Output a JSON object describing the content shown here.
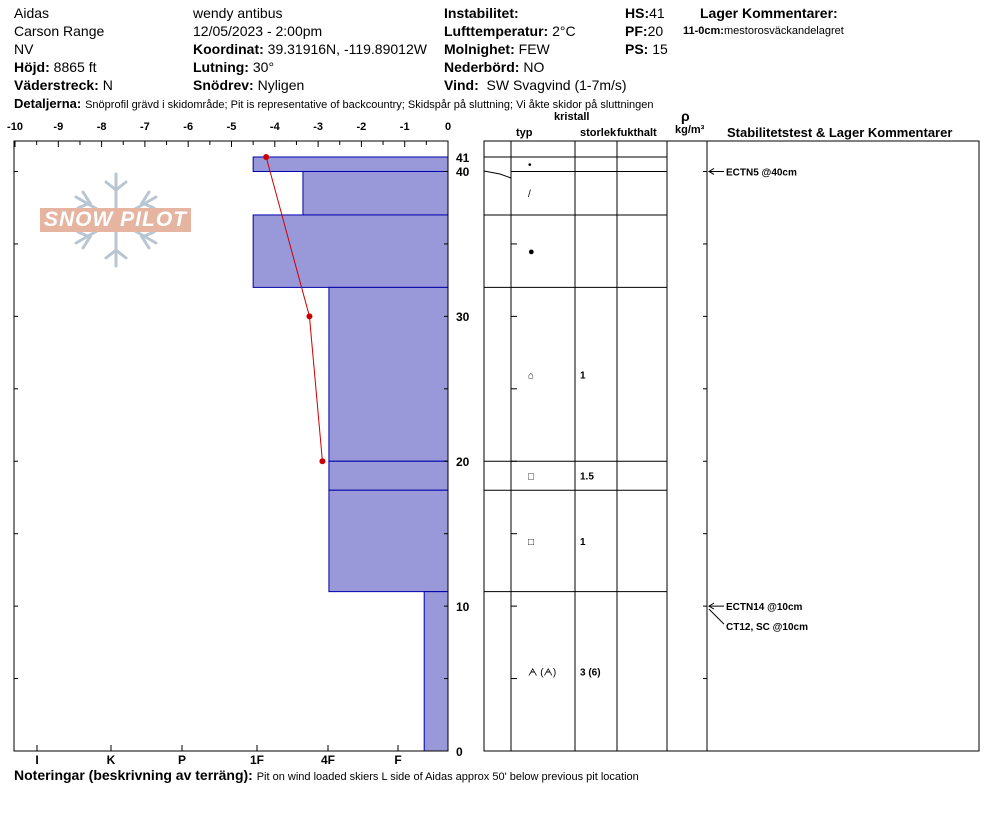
{
  "header": {
    "col1": [
      "Aidas",
      "Carson Range",
      "NV"
    ],
    "elevation_label": "Höjd:",
    "elevation_value": "8865 ft",
    "aspect_label": "Väderstreck:",
    "aspect_value": "N",
    "observer": "wendy antibus",
    "datetime": "12/05/2023 - 2:00pm",
    "coord_label": "Koordinat:",
    "coord_value": "39.31916N, -119.89012W",
    "slope_label": "Lutning:",
    "slope_value": "30°",
    "drift_label": "Snödrev:",
    "drift_value": "Nyligen",
    "instability_label": "Instabilitet:",
    "instability_value": "",
    "airtemp_label": "Lufttemperatur:",
    "airtemp_value": "2°C",
    "sky_label": "Molnighet:",
    "sky_value": "FEW",
    "precip_label": "Nederbörd:",
    "precip_value": "NO",
    "wind_label": "Vind:",
    "wind_value": "SW  Svagvind (1-7m/s)",
    "hs_label": "HS:",
    "hs_value": "41",
    "pf_label": "PF:",
    "pf_value": "20",
    "ps_label": "PS:",
    "ps_value": "15",
    "layer_comments_title": "Lager Kommentarer:",
    "layer_comment_depth": "11-0cm:",
    "layer_comment_text": "mestorosväckandelagret",
    "details_label": "Detaljerna:",
    "details_value": "Snöprofil grävd i skidområde;  Pit is representative of backcountry;  Skidspår på sluttning;  Vi åkte skidor på sluttningen"
  },
  "footer": {
    "notes_label": "Noteringar (beskrivning av terräng):",
    "notes_value": "Pit on wind loaded skiers L side of Aidas approx 50' below previous pit location"
  },
  "logo_text": "SNOW PILOT",
  "columns": {
    "type": "typ",
    "crystal": "kristall",
    "size": "storlek",
    "moisture": "fukthalt",
    "rho": "ρ",
    "density_unit": "kg/m³",
    "stability": "Stabilitetstest & Lager Kommentarer"
  },
  "chart_data": {
    "type": "bar",
    "x_axis_temperature": {
      "ticks": [
        "-10",
        "-9",
        "-8",
        "-7",
        "-6",
        "-5",
        "-4",
        "-3",
        "-2",
        "-1",
        "0"
      ],
      "range": [
        -10,
        0
      ]
    },
    "x_axis_hardness": {
      "ticks": [
        "I",
        "K",
        "P",
        "1F",
        "4F",
        "F"
      ]
    },
    "y_axis_depth": {
      "ticks": [
        "41",
        "40",
        "30",
        "20",
        "10",
        "0"
      ],
      "range": [
        0,
        41
      ],
      "unit": "cm"
    },
    "hardness_layers": [
      {
        "top": 41,
        "bottom": 40,
        "hardness_value": 4.5
      },
      {
        "top": 40,
        "bottom": 37,
        "hardness_value": 3.35
      },
      {
        "top": 37,
        "bottom": 32,
        "hardness_value": 4.5
      },
      {
        "top": 32,
        "bottom": 20,
        "hardness_value": 2.75
      },
      {
        "top": 20,
        "bottom": 18,
        "hardness_value": 2.75
      },
      {
        "top": 18,
        "bottom": 11,
        "hardness_value": 2.75
      },
      {
        "top": 11,
        "bottom": 0,
        "hardness_value": 0.55
      }
    ],
    "temperature_profile": [
      {
        "depth": 41,
        "temp": -4.2
      },
      {
        "depth": 30,
        "temp": -3.2
      },
      {
        "depth": 20,
        "temp": -2.9
      }
    ],
    "layer_boundaries": [
      41,
      40,
      37,
      32,
      20,
      18,
      11,
      0
    ],
    "crystal_layers": [
      {
        "depth_mid": 40.5,
        "symbol": "•",
        "size": ""
      },
      {
        "depth_mid": 38.5,
        "symbol": "/",
        "size": ""
      },
      {
        "depth_mid": 34.5,
        "symbol": "●",
        "size": ""
      },
      {
        "depth_mid": 26,
        "symbol": "⌂",
        "size": "1"
      },
      {
        "depth_mid": 19,
        "symbol": "□",
        "size": "1.5"
      },
      {
        "depth_mid": 14.5,
        "symbol": "□",
        "size": "1"
      },
      {
        "depth_mid": 5.5,
        "symbol": "ᗅ (ᗅ)",
        "size": "3 (6)"
      }
    ],
    "stability_tests": [
      {
        "depth": 40,
        "label": "ECTN5 @40cm"
      },
      {
        "depth": 10,
        "label": "ECTN14 @10cm"
      },
      {
        "depth": 10,
        "label": "CT12, SC @10cm"
      }
    ],
    "colors": {
      "bar_fill": "#9999d9",
      "bar_stroke": "#0000aa",
      "temp_line": "#cc0000"
    }
  }
}
